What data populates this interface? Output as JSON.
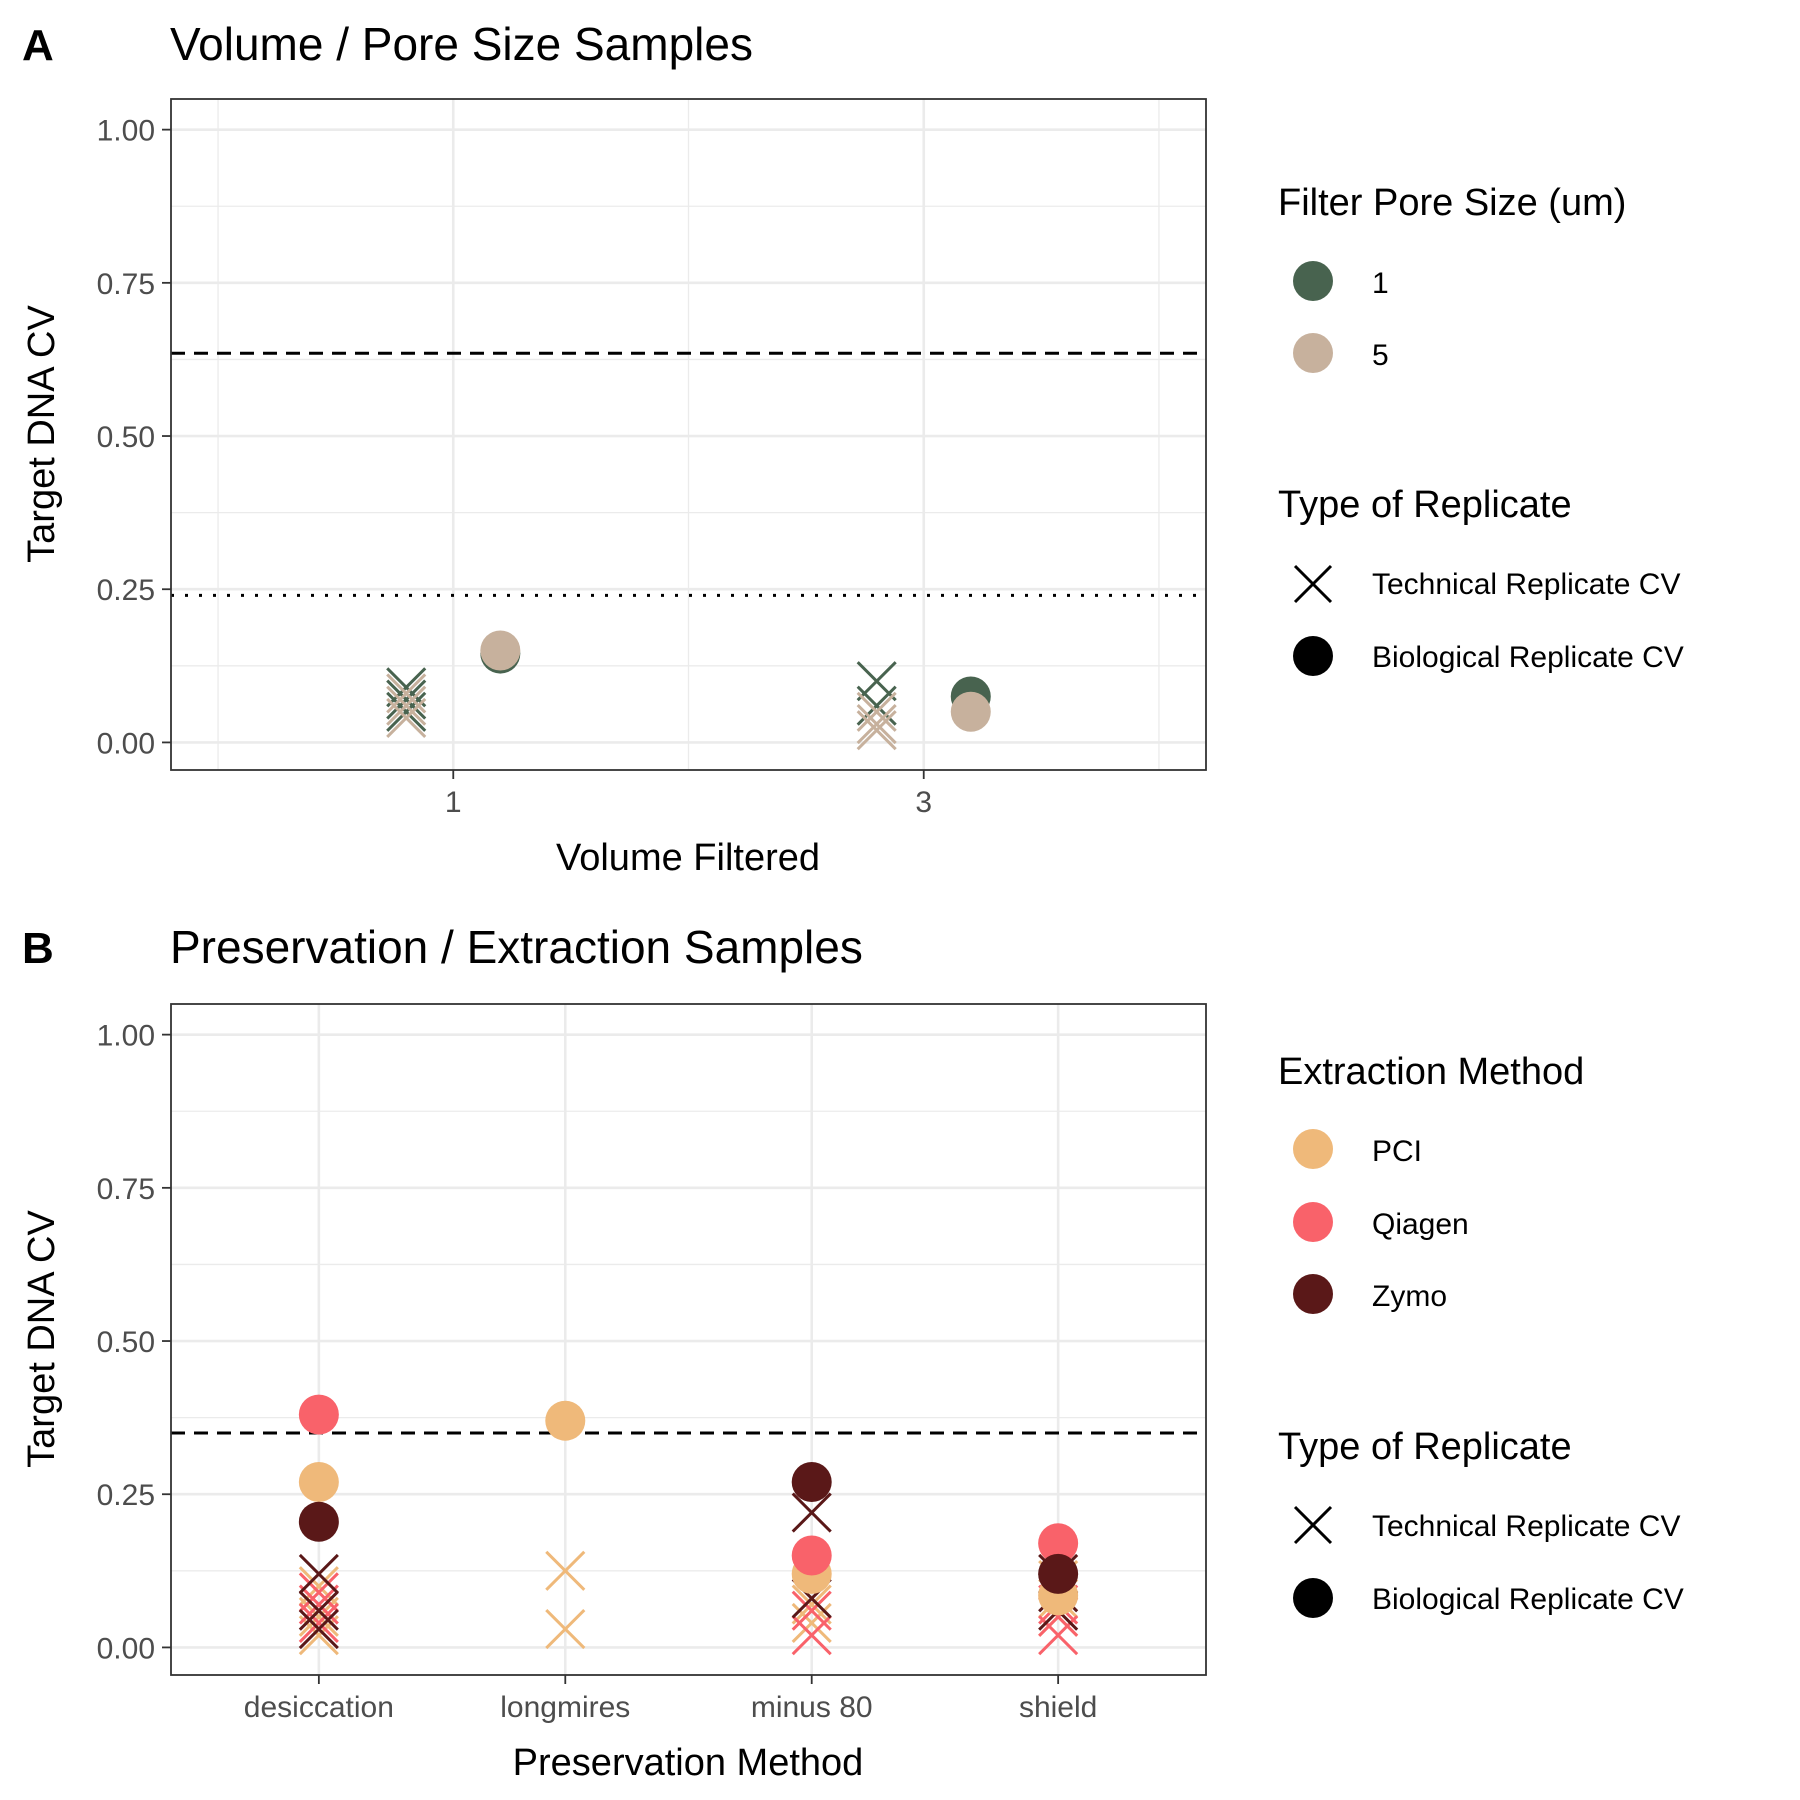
{
  "colors": {
    "pore_1um": "#48634f",
    "pore_5um": "#c7b19d",
    "PCI": "#efb97a",
    "Qiagen": "#f9626a",
    "Zymo": "#5a1818",
    "legend_marker": "#000000",
    "grid": "#ebebeb",
    "axis_text": "#4d4d4d",
    "text": "#000000"
  },
  "chart_data": [
    {
      "type": "scatter",
      "panel_tag": "A",
      "title": "Volume / Pore Size Samples",
      "xlabel": "Volume Filtered",
      "ylabel": "Target DNA CV",
      "x_ticks": [
        "1",
        "3"
      ],
      "x_range": [
        -0.2,
        4.2
      ],
      "ylim": [
        -0.045,
        1.05
      ],
      "y_ticks": [
        "0.00",
        "0.25",
        "0.50",
        "0.75",
        "1.00"
      ],
      "grid": true,
      "reference_lines": [
        {
          "style": "dashed",
          "y": 0.635
        },
        {
          "style": "dotted",
          "y": 0.24
        }
      ],
      "legends": [
        {
          "title": "Filter Pore Size (um)",
          "kind": "color",
          "items": [
            {
              "label": "1",
              "color": "#48634f"
            },
            {
              "label": "5",
              "color": "#c7b19d"
            }
          ]
        },
        {
          "title": "Type of Replicate",
          "kind": "shape",
          "items": [
            {
              "label": "Technical Replicate CV",
              "shape": "x"
            },
            {
              "label": "Biological Replicate CV",
              "shape": "circle"
            }
          ]
        }
      ],
      "series": [
        {
          "name": "1",
          "replicate": "Technical Replicate CV",
          "x": [
            0.8,
            0.8,
            0.8,
            2.8,
            2.8
          ],
          "y": [
            0.07,
            0.05,
            0.09,
            0.1,
            0.06
          ],
          "color": "#48634f"
        },
        {
          "name": "5",
          "replicate": "Technical Replicate CV",
          "x": [
            0.8,
            0.8,
            0.8,
            2.8,
            2.8,
            2.8
          ],
          "y": [
            0.06,
            0.08,
            0.04,
            0.03,
            0.02,
            0.05
          ],
          "color": "#c7b19d"
        },
        {
          "name": "1",
          "replicate": "Biological Replicate CV",
          "x": [
            1.2,
            3.2
          ],
          "y": [
            0.145,
            0.075
          ],
          "color": "#48634f"
        },
        {
          "name": "5",
          "replicate": "Biological Replicate CV",
          "x": [
            1.2,
            3.2
          ],
          "y": [
            0.15,
            0.05
          ],
          "color": "#c7b19d"
        }
      ]
    },
    {
      "type": "scatter",
      "panel_tag": "B",
      "title": "Preservation / Extraction Samples",
      "xlabel": "Preservation Method",
      "ylabel": "Target DNA CV",
      "categories": [
        "desiccation",
        "longmires",
        "minus 80",
        "shield"
      ],
      "ylim": [
        -0.045,
        1.05
      ],
      "y_ticks": [
        "0.00",
        "0.25",
        "0.50",
        "0.75",
        "1.00"
      ],
      "grid": true,
      "reference_lines": [
        {
          "style": "dashed",
          "y": 0.35
        }
      ],
      "legends": [
        {
          "title": "Extraction Method",
          "kind": "color",
          "items": [
            {
              "label": "PCI",
              "color": "#efb97a"
            },
            {
              "label": "Qiagen",
              "color": "#f9626a"
            },
            {
              "label": "Zymo",
              "color": "#5a1818"
            }
          ]
        },
        {
          "title": "Type of Replicate",
          "kind": "shape",
          "items": [
            {
              "label": "Technical Replicate CV",
              "shape": "x"
            },
            {
              "label": "Biological Replicate CV",
              "shape": "circle"
            }
          ]
        }
      ],
      "series": [
        {
          "name": "PCI",
          "replicate": "Technical Replicate CV",
          "x": [
            "desiccation",
            "desiccation",
            "desiccation",
            "longmires",
            "longmires",
            "minus 80",
            "minus 80",
            "shield",
            "shield",
            "shield"
          ],
          "y": [
            0.02,
            0.05,
            0.1,
            0.125,
            0.03,
            0.04,
            0.07,
            0.11,
            0.08,
            0.05
          ],
          "color": "#efb97a"
        },
        {
          "name": "Qiagen",
          "replicate": "Technical Replicate CV",
          "x": [
            "desiccation",
            "desiccation",
            "desiccation",
            "minus 80",
            "minus 80",
            "shield",
            "shield",
            "shield"
          ],
          "y": [
            0.04,
            0.07,
            0.09,
            0.02,
            0.06,
            0.02,
            0.05,
            0.07
          ],
          "color": "#f9626a"
        },
        {
          "name": "Zymo",
          "replicate": "Technical Replicate CV",
          "x": [
            "desiccation",
            "desiccation",
            "desiccation",
            "minus 80",
            "minus 80",
            "shield",
            "shield",
            "shield"
          ],
          "y": [
            0.12,
            0.06,
            0.03,
            0.22,
            0.08,
            0.12,
            0.09,
            0.06
          ],
          "color": "#5a1818"
        },
        {
          "name": "PCI",
          "replicate": "Biological Replicate CV",
          "x": [
            "desiccation",
            "longmires",
            "minus 80",
            "shield"
          ],
          "y": [
            0.27,
            0.37,
            0.12,
            0.085
          ],
          "color": "#efb97a"
        },
        {
          "name": "Qiagen",
          "replicate": "Biological Replicate CV",
          "x": [
            "desiccation",
            "minus 80",
            "shield"
          ],
          "y": [
            0.38,
            0.15,
            0.17
          ],
          "color": "#f9626a"
        },
        {
          "name": "Zymo",
          "replicate": "Biological Replicate CV",
          "x": [
            "desiccation",
            "minus 80",
            "shield"
          ],
          "y": [
            0.205,
            0.27,
            0.12
          ],
          "color": "#5a1818"
        }
      ]
    }
  ]
}
